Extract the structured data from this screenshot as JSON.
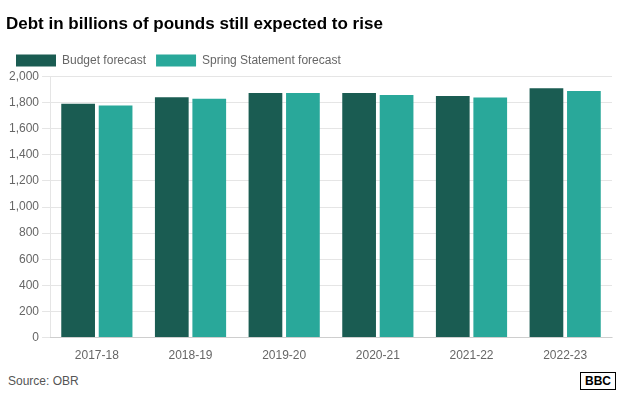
{
  "chart_data": {
    "type": "bar",
    "title": "Debt in billions of pounds still expected to rise",
    "categories": [
      "2017-18",
      "2018-19",
      "2019-20",
      "2020-21",
      "2021-22",
      "2022-23"
    ],
    "series": [
      {
        "name": "Budget forecast",
        "color": "#1a5c52",
        "values": [
          1790,
          1840,
          1873,
          1873,
          1849,
          1910
        ]
      },
      {
        "name": "Spring Statement forecast",
        "color": "#29a89a",
        "values": [
          1778,
          1828,
          1873,
          1858,
          1838,
          1888
        ]
      }
    ],
    "ylim": [
      0,
      2000
    ],
    "yticks": [
      0,
      200,
      400,
      600,
      800,
      {
        "value": 1000,
        "label": "1,000"
      },
      {
        "value": 1200,
        "label": "1,200"
      },
      {
        "value": 1400,
        "label": "1,400"
      },
      {
        "value": 1600,
        "label": "1,600"
      },
      {
        "value": 1800,
        "label": "1,800"
      },
      {
        "value": 2000,
        "label": "2,000"
      }
    ],
    "grid": true,
    "legend": "upper left",
    "annotations": [
      "Source: OBR",
      "BBC"
    ]
  }
}
